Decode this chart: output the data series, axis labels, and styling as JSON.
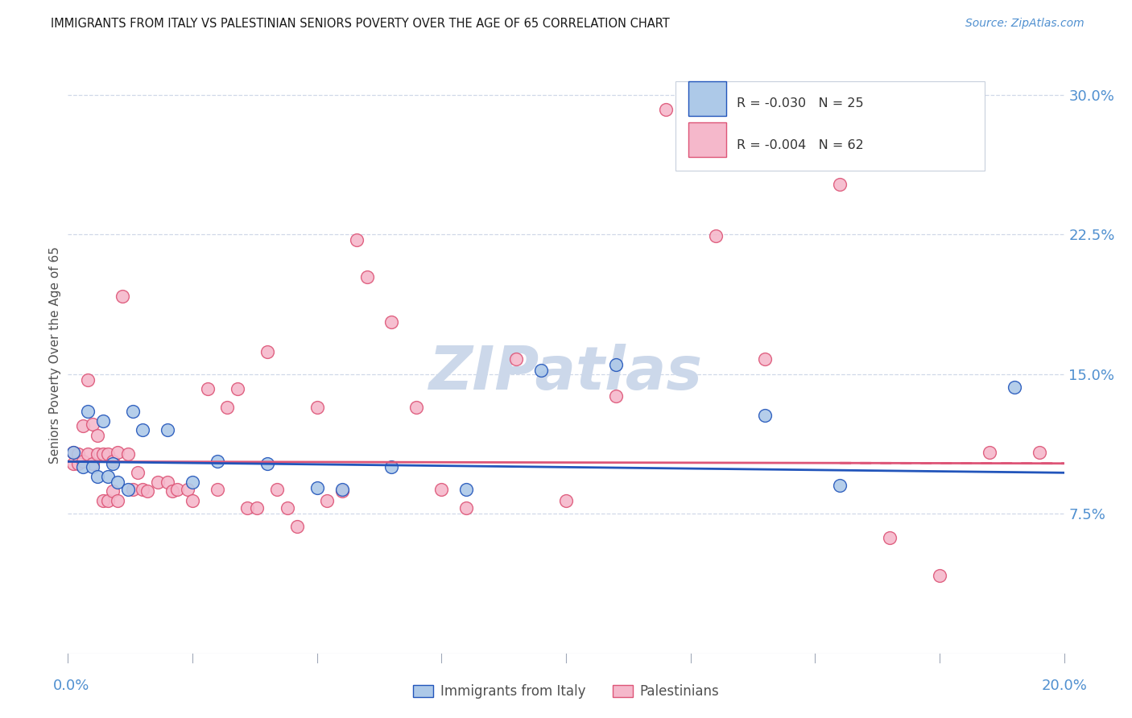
{
  "title": "IMMIGRANTS FROM ITALY VS PALESTINIAN SENIORS POVERTY OVER THE AGE OF 65 CORRELATION CHART",
  "source": "Source: ZipAtlas.com",
  "ylabel": "Seniors Poverty Over the Age of 65",
  "xlim": [
    0.0,
    0.2
  ],
  "ylim": [
    0.0,
    0.32
  ],
  "yticks": [
    0.075,
    0.15,
    0.225,
    0.3
  ],
  "ytick_labels": [
    "7.5%",
    "15.0%",
    "22.5%",
    "30.0%"
  ],
  "italy_R": "-0.030",
  "italy_N": "25",
  "pal_R": "-0.004",
  "pal_N": "62",
  "italy_color": "#adc9e8",
  "pal_color": "#f5b8cb",
  "italy_line_color": "#2255bb",
  "pal_line_color": "#dd5577",
  "axis_color": "#5090d0",
  "grid_color": "#d0d8e8",
  "watermark_color": "#ccd8ea",
  "italy_x": [
    0.001,
    0.003,
    0.004,
    0.005,
    0.006,
    0.007,
    0.008,
    0.009,
    0.01,
    0.012,
    0.013,
    0.015,
    0.02,
    0.025,
    0.03,
    0.04,
    0.05,
    0.055,
    0.065,
    0.08,
    0.095,
    0.11,
    0.14,
    0.155,
    0.19
  ],
  "italy_y": [
    0.108,
    0.1,
    0.13,
    0.1,
    0.095,
    0.125,
    0.095,
    0.102,
    0.092,
    0.088,
    0.13,
    0.12,
    0.12,
    0.092,
    0.103,
    0.102,
    0.089,
    0.088,
    0.1,
    0.088,
    0.152,
    0.155,
    0.128,
    0.09,
    0.143
  ],
  "pal_x": [
    0.001,
    0.001,
    0.002,
    0.002,
    0.003,
    0.003,
    0.004,
    0.004,
    0.005,
    0.005,
    0.006,
    0.006,
    0.007,
    0.007,
    0.008,
    0.008,
    0.009,
    0.009,
    0.01,
    0.01,
    0.011,
    0.012,
    0.013,
    0.014,
    0.015,
    0.016,
    0.018,
    0.02,
    0.021,
    0.022,
    0.024,
    0.025,
    0.028,
    0.03,
    0.032,
    0.034,
    0.036,
    0.038,
    0.04,
    0.042,
    0.044,
    0.046,
    0.05,
    0.052,
    0.055,
    0.058,
    0.06,
    0.065,
    0.07,
    0.075,
    0.08,
    0.09,
    0.1,
    0.11,
    0.12,
    0.13,
    0.14,
    0.155,
    0.165,
    0.175,
    0.185,
    0.195
  ],
  "pal_y": [
    0.108,
    0.102,
    0.107,
    0.102,
    0.122,
    0.103,
    0.147,
    0.107,
    0.123,
    0.102,
    0.117,
    0.107,
    0.107,
    0.082,
    0.107,
    0.082,
    0.103,
    0.087,
    0.108,
    0.082,
    0.192,
    0.107,
    0.088,
    0.097,
    0.088,
    0.087,
    0.092,
    0.092,
    0.087,
    0.088,
    0.088,
    0.082,
    0.142,
    0.088,
    0.132,
    0.142,
    0.078,
    0.078,
    0.162,
    0.088,
    0.078,
    0.068,
    0.132,
    0.082,
    0.087,
    0.222,
    0.202,
    0.178,
    0.132,
    0.088,
    0.078,
    0.158,
    0.082,
    0.138,
    0.292,
    0.224,
    0.158,
    0.252,
    0.062,
    0.042,
    0.108,
    0.108
  ],
  "italy_trend_x": [
    0.0,
    0.2
  ],
  "italy_trend_y": [
    0.103,
    0.097
  ],
  "pal_trend_x": [
    0.0,
    0.2
  ],
  "pal_trend_y": [
    0.103,
    0.102
  ]
}
